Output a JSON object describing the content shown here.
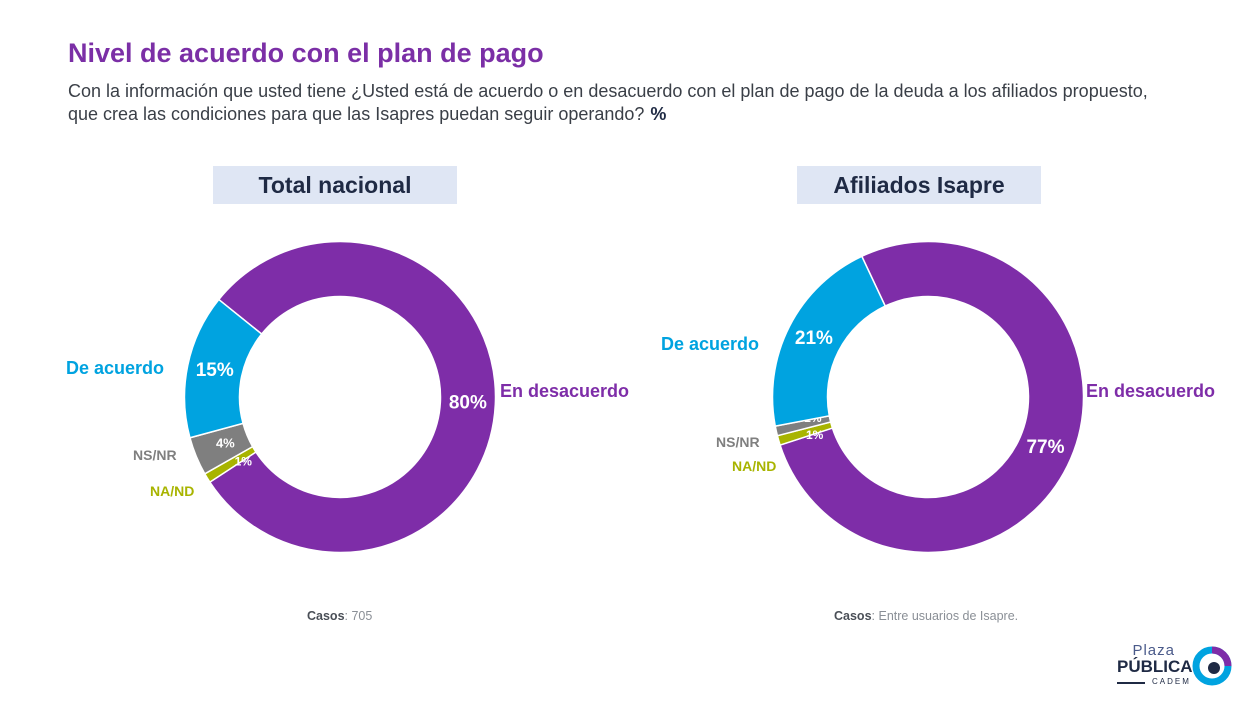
{
  "title": "Nivel de acuerdo con el plan de pago",
  "subtitle": "Con la información que usted tiene ¿Usted está de acuerdo o en desacuerdo con el plan de pago de la deuda a los afiliados propuesto, que crea las condiciones para que las Isapres puedan seguir operando?",
  "subtitle_pct": "%",
  "colors": {
    "de_acuerdo": "#00a3e0",
    "en_desacuerdo": "#7e2da8",
    "ns_nr": "#7f7f7f",
    "na_nd": "#a8b400"
  },
  "chart_data": [
    {
      "type": "pie",
      "title": "Total nacional",
      "categories": [
        "En desacuerdo",
        "NA/ND",
        "NS/NR",
        "De acuerdo"
      ],
      "values": [
        80,
        1,
        4,
        15
      ],
      "value_labels": [
        "80%",
        "1%",
        "4%",
        "15%"
      ],
      "outer_labels": {
        "de_acuerdo": "De acuerdo",
        "en_desacuerdo": "En desacuerdo",
        "ns_nr": "NS/NR",
        "na_nd": "NA/ND"
      },
      "casos_label": "Casos",
      "casos_value": ": 705"
    },
    {
      "type": "pie",
      "title": "Afiliados Isapre",
      "categories": [
        "En desacuerdo",
        "NA/ND",
        "NS/NR",
        "De acuerdo"
      ],
      "values": [
        77,
        1,
        1,
        21
      ],
      "value_labels": [
        "77%",
        "1%",
        "1%",
        "21%"
      ],
      "outer_labels": {
        "de_acuerdo": "De acuerdo",
        "en_desacuerdo": "En desacuerdo",
        "ns_nr": "NS/NR",
        "na_nd": "NA/ND"
      },
      "casos_label": "Casos",
      "casos_value": ": Entre usuarios de Isapre."
    }
  ],
  "logo": {
    "line1": "Plaza",
    "line2": "PÚBLICA",
    "line3": "CADEM"
  }
}
